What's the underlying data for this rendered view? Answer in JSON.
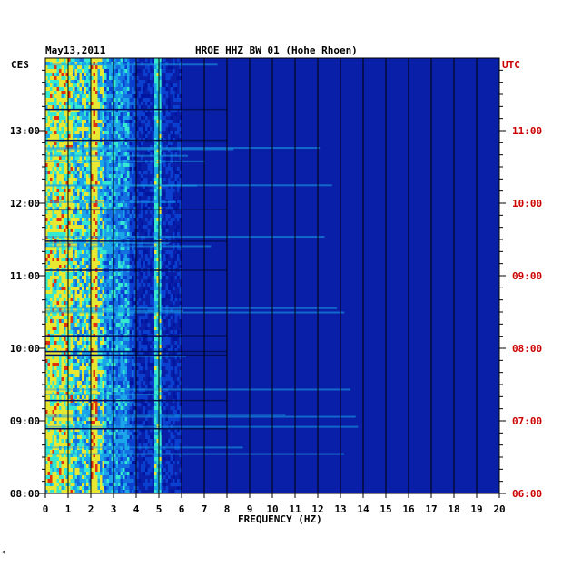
{
  "chart_data": {
    "type": "heatmap",
    "title_date": "May13,2011",
    "title_station": "HROE HHZ BW 01 (Hohe Rhoen)",
    "left_axis_label": "CES",
    "right_axis_label": "UTC",
    "xlabel": "FREQUENCY (HZ)",
    "xlim": [
      0,
      20
    ],
    "x_ticks": [
      "0",
      "1",
      "2",
      "3",
      "4",
      "5",
      "6",
      "7",
      "8",
      "9",
      "10",
      "11",
      "12",
      "13",
      "14",
      "15",
      "16",
      "17",
      "18",
      "19",
      "20"
    ],
    "left_time_ticks": [
      "08:00",
      "09:00",
      "10:00",
      "11:00",
      "12:00",
      "13:00"
    ],
    "right_time_ticks": [
      "06:00",
      "07:00",
      "08:00",
      "09:00",
      "10:00",
      "11:00"
    ],
    "time_range_local": [
      "08:00",
      "13:55"
    ],
    "grid": true,
    "colors": {
      "background": "#0a1fa8",
      "low": "#0016a0",
      "mid": "#1aa6e8",
      "high_cyan": "#35e8d0",
      "yellow": "#e8e832",
      "red": "#e03010",
      "utc_label": "#cc0000",
      "grid": "#000000"
    }
  },
  "corner_mark": "*"
}
